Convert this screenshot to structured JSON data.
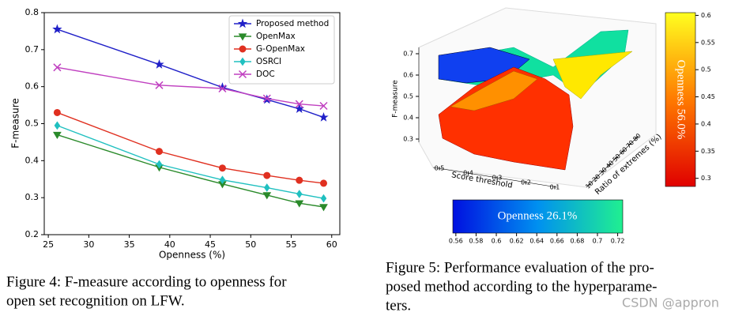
{
  "chart_data": [
    {
      "type": "line",
      "xlabel": "Openness (%)",
      "ylabel": "F-measure",
      "x": [
        26.1,
        38.7,
        46.5,
        52,
        56,
        59
      ],
      "xlim": [
        24.5,
        61
      ],
      "xticks": [
        25,
        30,
        35,
        40,
        45,
        50,
        55,
        60
      ],
      "ylim": [
        0.2,
        0.8
      ],
      "yticks": [
        0.2,
        0.3,
        0.4,
        0.5,
        0.6,
        0.7,
        0.8
      ],
      "legend": "upper right",
      "series": [
        {
          "name": "Proposed method",
          "color": "#2020c8",
          "marker": "star",
          "values": [
            0.755,
            0.66,
            0.598,
            0.565,
            0.54,
            0.517
          ]
        },
        {
          "name": "OpenMax",
          "color": "#2a8a2a",
          "marker": "triangle-down",
          "values": [
            0.47,
            0.382,
            0.337,
            0.307,
            0.285,
            0.275
          ]
        },
        {
          "name": "G-OpenMax",
          "color": "#e03020",
          "marker": "circle",
          "values": [
            0.53,
            0.425,
            0.38,
            0.36,
            0.347,
            0.339
          ]
        },
        {
          "name": "OSRCI",
          "color": "#20c0c0",
          "marker": "diamond",
          "values": [
            0.495,
            0.39,
            0.348,
            0.327,
            0.31,
            0.298
          ]
        },
        {
          "name": "DOC",
          "color": "#c040c0",
          "marker": "x",
          "values": [
            0.652,
            0.604,
            0.595,
            0.568,
            0.553,
            0.548
          ]
        }
      ],
      "caption": [
        "Figure 4: F-measure according to openness for",
        "open set recognition on LFW."
      ]
    },
    {
      "type": "surface3d",
      "xlabel": "Score threshold",
      "ylabel": "Ratio of extremes (%)",
      "zlabel": "F-measure",
      "xticks": [
        0.5,
        0.4,
        0.3,
        0.2,
        0.1
      ],
      "yticks": [
        10,
        20,
        30,
        40,
        50,
        60,
        70,
        80
      ],
      "zticks": [
        0.3,
        0.4,
        0.5,
        0.6,
        0.7
      ],
      "colorbars": [
        {
          "label": "Openness 56.0%",
          "lim": [
            0.285,
            0.605
          ],
          "ticks": [
            0.3,
            0.35,
            0.4,
            0.45,
            0.5,
            0.55,
            0.6
          ]
        },
        {
          "label": "Openness 26.1%",
          "lim": [
            0.557,
            0.725
          ],
          "ticks": [
            0.56,
            0.58,
            0.6,
            0.62,
            0.64,
            0.66,
            0.68,
            0.7,
            0.72
          ]
        }
      ],
      "caption": [
        "Figure 5: Performance evaluation of the pro-",
        "posed method according to the hyperparame-",
        "ters."
      ]
    }
  ],
  "watermark": "CSDN @appron"
}
